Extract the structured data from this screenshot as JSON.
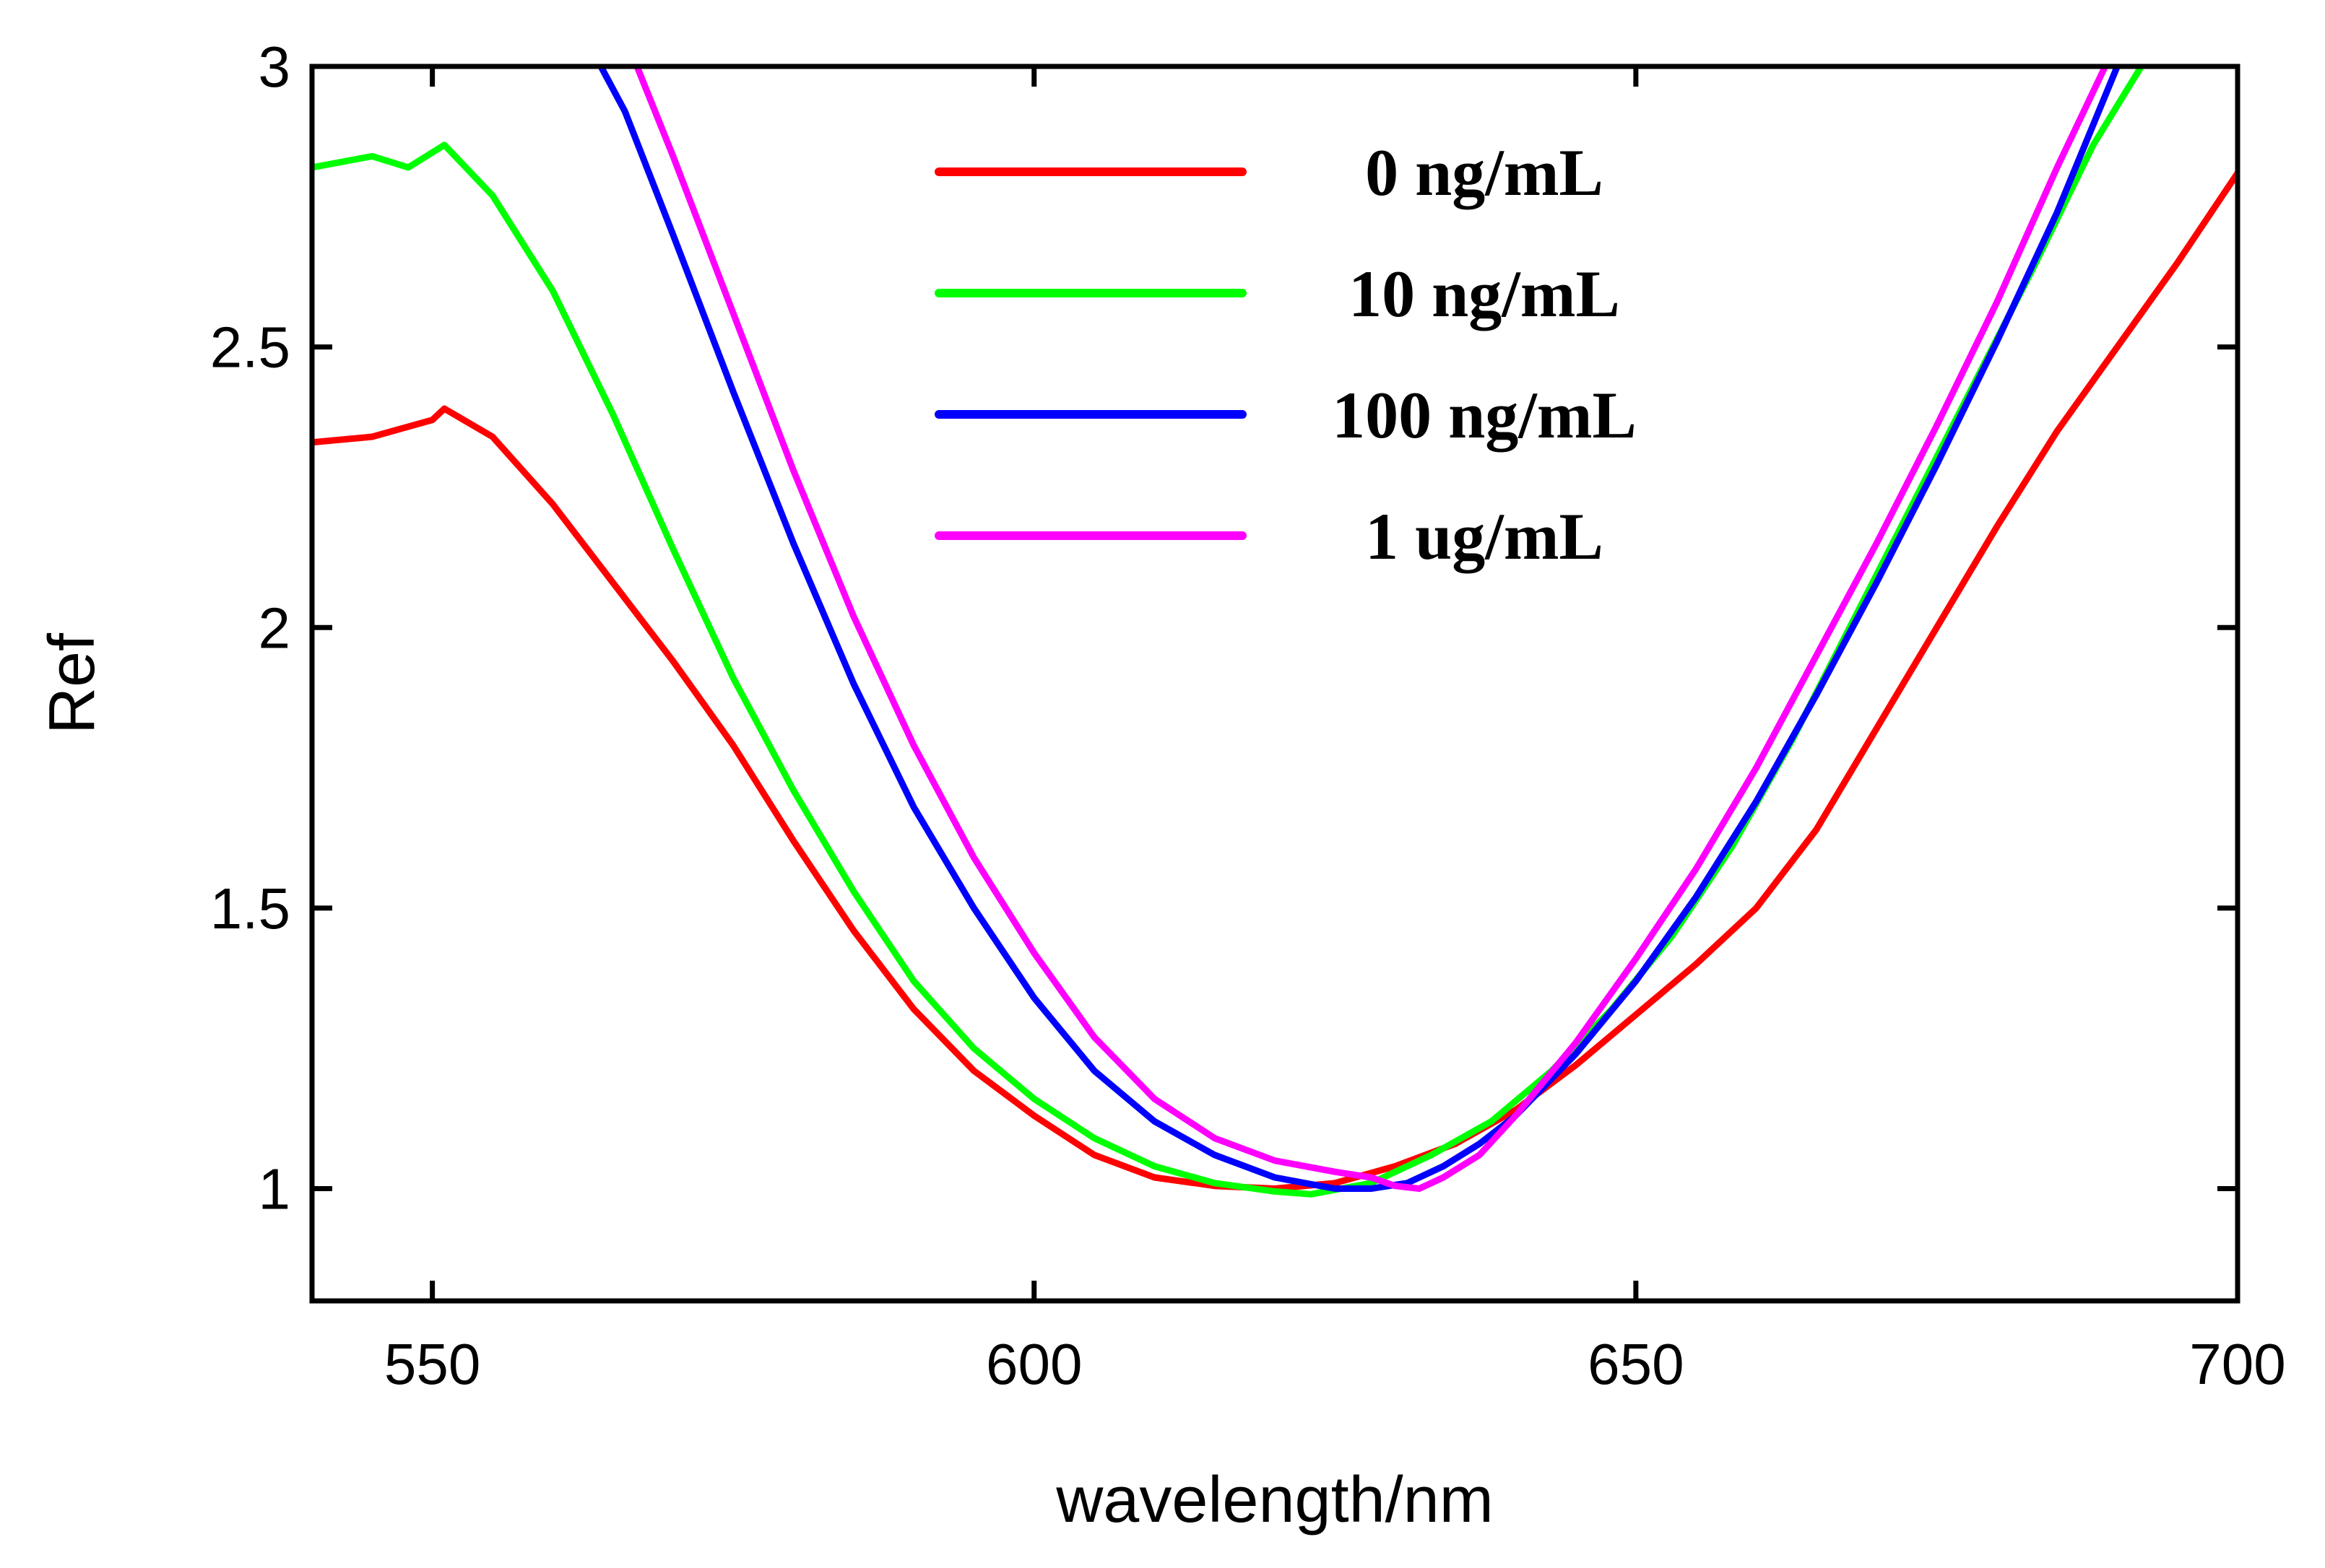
{
  "chart_data": {
    "type": "line",
    "title": "",
    "xlabel": "wavelength/nm",
    "ylabel": "Ref",
    "xlim": [
      540,
      700
    ],
    "ylim": [
      0.8,
      3.0
    ],
    "xticks": [
      550,
      600,
      650,
      700
    ],
    "xtick_labels": [
      "550",
      "600",
      "650",
      "700"
    ],
    "yticks": [
      1,
      1.5,
      2,
      2.5,
      3
    ],
    "ytick_labels": [
      "1",
      "1.5",
      "2",
      "2.5",
      "3"
    ],
    "grid": false,
    "legend_position": "top-center",
    "series": [
      {
        "name": "0 ng/mL",
        "color": "#ff0000",
        "x": [
          540,
          545,
          550,
          551,
          555,
          560,
          565,
          570,
          575,
          580,
          585,
          590,
          595,
          600,
          605,
          610,
          615,
          620,
          625,
          630,
          635,
          640,
          645,
          650,
          655,
          660,
          665,
          670,
          675,
          680,
          685,
          690,
          695,
          700
        ],
        "y": [
          2.33,
          2.34,
          2.37,
          2.39,
          2.34,
          2.22,
          2.08,
          1.94,
          1.79,
          1.62,
          1.46,
          1.32,
          1.21,
          1.13,
          1.06,
          1.02,
          1.005,
          1.0,
          1.01,
          1.04,
          1.08,
          1.14,
          1.22,
          1.31,
          1.4,
          1.5,
          1.64,
          1.82,
          2.0,
          2.18,
          2.35,
          2.5,
          2.65,
          2.81
        ]
      },
      {
        "name": "10 ng/mL",
        "color": "#00ff00",
        "x": [
          540,
          545,
          548,
          551,
          555,
          560,
          565,
          570,
          575,
          580,
          585,
          590,
          595,
          600,
          605,
          610,
          615,
          620,
          623,
          628,
          633,
          638,
          643,
          648,
          653,
          658,
          663,
          668,
          673,
          678,
          683,
          688,
          692
        ],
        "y": [
          2.82,
          2.84,
          2.82,
          2.86,
          2.77,
          2.6,
          2.38,
          2.14,
          1.91,
          1.71,
          1.53,
          1.37,
          1.25,
          1.16,
          1.09,
          1.04,
          1.01,
          0.995,
          0.99,
          1.01,
          1.06,
          1.12,
          1.21,
          1.32,
          1.45,
          1.61,
          1.8,
          2.01,
          2.22,
          2.43,
          2.64,
          2.86,
          3.0
        ]
      },
      {
        "name": "100 ng/mL",
        "color": "#0000ff",
        "x": [
          564,
          566,
          570,
          575,
          580,
          585,
          590,
          595,
          600,
          605,
          610,
          615,
          620,
          625,
          628,
          631,
          634,
          637,
          640,
          645,
          650,
          655,
          660,
          665,
          670,
          675,
          680,
          685,
          690
        ],
        "y": [
          3.0,
          2.92,
          2.7,
          2.42,
          2.15,
          1.9,
          1.68,
          1.5,
          1.34,
          1.21,
          1.12,
          1.06,
          1.02,
          1.0,
          1.0,
          1.01,
          1.04,
          1.08,
          1.13,
          1.24,
          1.37,
          1.52,
          1.69,
          1.88,
          2.08,
          2.29,
          2.51,
          2.74,
          3.0
        ]
      },
      {
        "name": "1 ug/mL",
        "color": "#ff00ff",
        "x": [
          567,
          570,
          575,
          580,
          585,
          590,
          595,
          600,
          605,
          610,
          615,
          620,
          625,
          628,
          630,
          632,
          634,
          637,
          640,
          645,
          650,
          655,
          660,
          665,
          670,
          675,
          680,
          685,
          689
        ],
        "y": [
          3.0,
          2.84,
          2.56,
          2.28,
          2.02,
          1.79,
          1.59,
          1.42,
          1.27,
          1.16,
          1.09,
          1.05,
          1.03,
          1.02,
          1.005,
          1.0,
          1.02,
          1.06,
          1.13,
          1.26,
          1.41,
          1.57,
          1.75,
          1.95,
          2.15,
          2.36,
          2.58,
          2.82,
          3.0
        ]
      }
    ]
  }
}
